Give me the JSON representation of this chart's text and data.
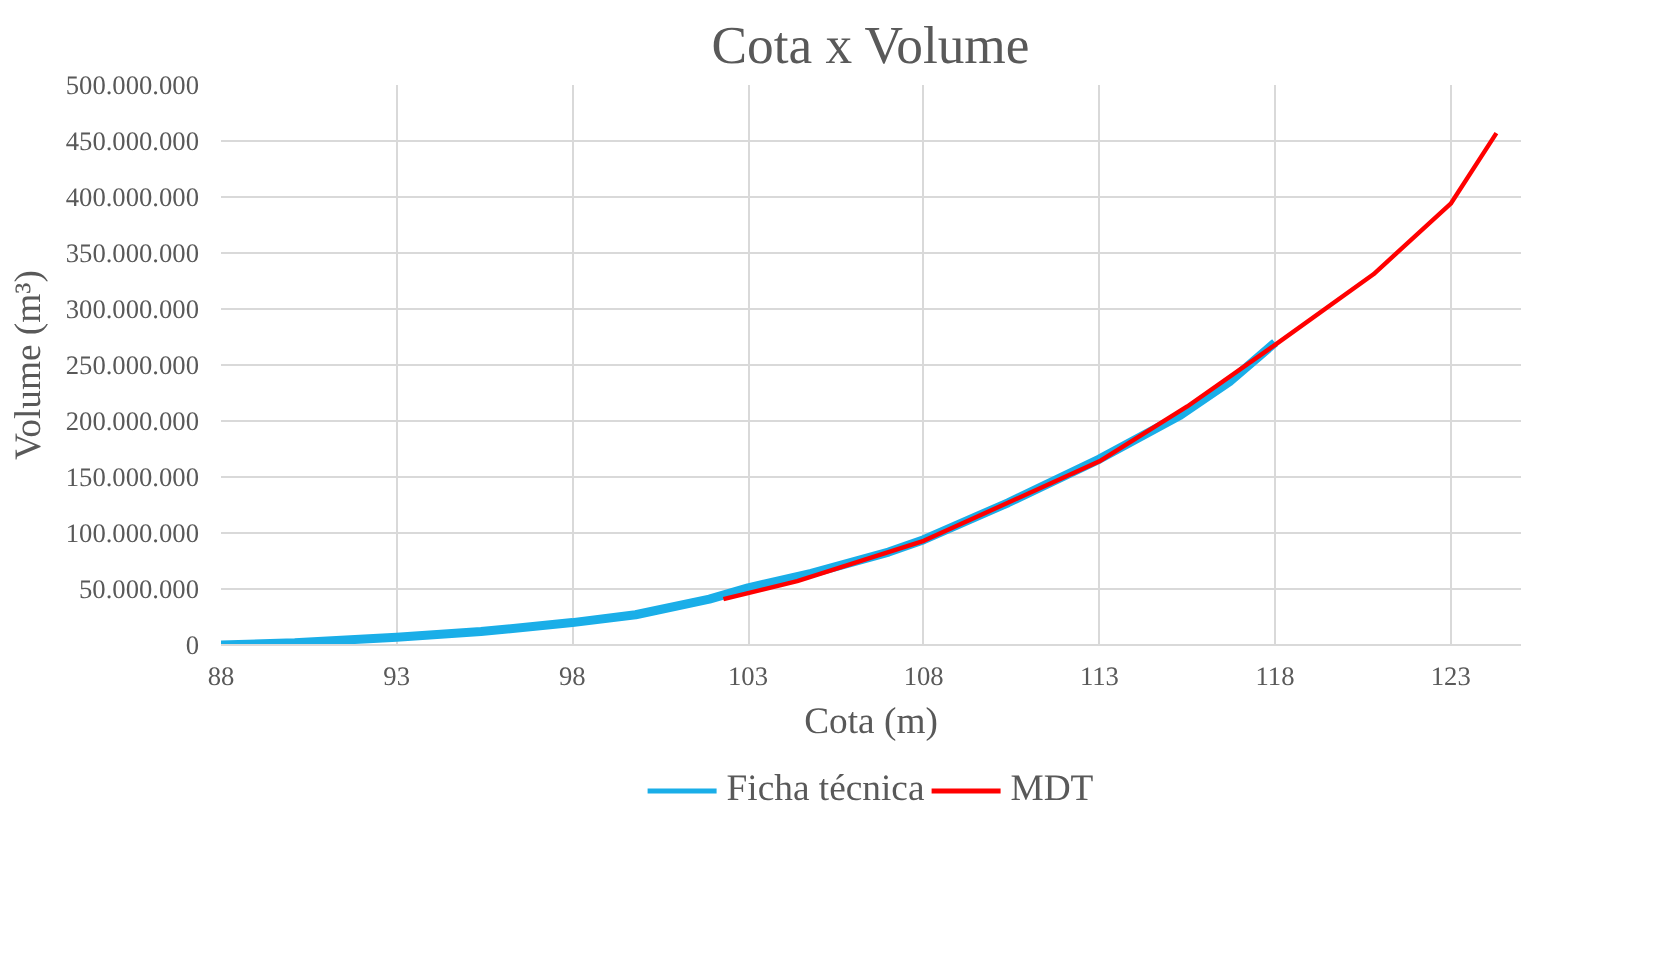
{
  "chart_data": {
    "type": "line",
    "title": "Cota x Volume",
    "xlabel": "Cota (m)",
    "ylabel": "Volume (m³)",
    "xlim": [
      88,
      125
    ],
    "xticks": [
      88,
      93,
      98,
      103,
      108,
      113,
      118,
      123
    ],
    "ylim": [
      0,
      500000000
    ],
    "yticks": [
      0,
      {
        "value": 50000000,
        "label": "50.000.000"
      },
      {
        "value": 100000000,
        "label": "100.000.000"
      },
      {
        "value": 150000000,
        "label": "150.000.000"
      },
      {
        "value": 200000000,
        "label": "200.000.000"
      },
      {
        "value": 250000000,
        "label": "250.000.000"
      },
      {
        "value": 300000000,
        "label": "300.000.000"
      },
      {
        "value": 350000000,
        "label": "350.000.000"
      },
      {
        "value": 400000000,
        "label": "400.000.000"
      },
      {
        "value": 450000000,
        "label": "450.000.000"
      },
      {
        "value": 500000000,
        "label": "500.000.000"
      }
    ],
    "grid": true,
    "legend": "bottom",
    "line_style": "solid",
    "series": [
      {
        "name": "Ficha técnica",
        "color": "#1aaee8",
        "x": [
          88,
          90.1,
          93,
          95.4,
          98,
          99.8,
          101.9,
          103,
          104.8,
          107,
          108,
          110.4,
          113,
          115.3,
          116.7,
          118
        ],
        "values": [
          0,
          2000000,
          7000000,
          12000000,
          20000000,
          27000000,
          41000000,
          51000000,
          64000000,
          83000000,
          94000000,
          127000000,
          166000000,
          205000000,
          235000000,
          270000000
        ]
      },
      {
        "name": "MDT",
        "color": "#ff0000",
        "x": [
          102.3,
          104.4,
          108,
          113,
          115.5,
          118,
          120.8,
          123,
          124.3
        ],
        "values": [
          41000000,
          57000000,
          93000000,
          164000000,
          213000000,
          268000000,
          331000000,
          394000000,
          457000000
        ]
      }
    ]
  }
}
